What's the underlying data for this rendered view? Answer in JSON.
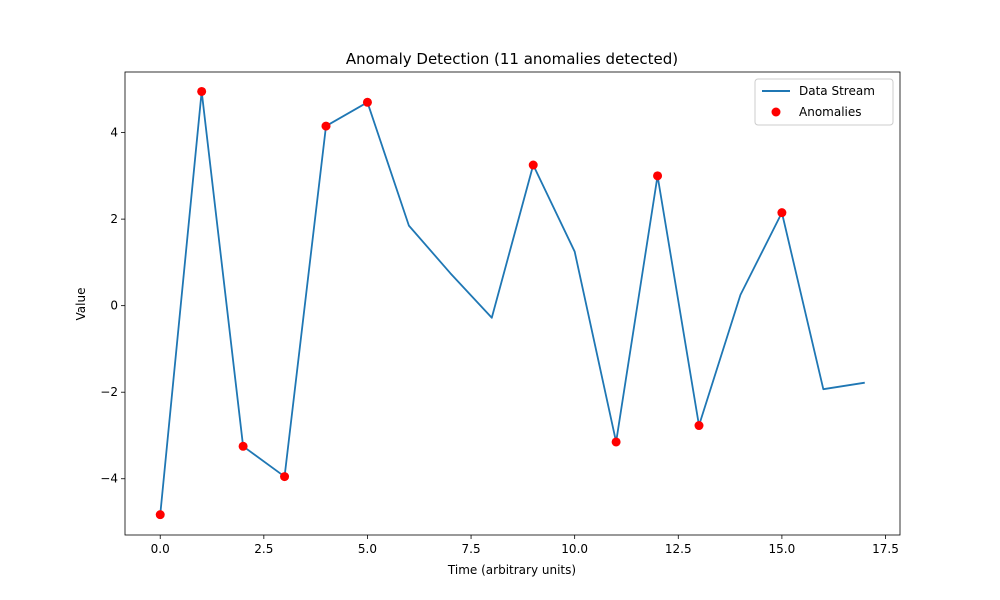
{
  "chart_data": {
    "type": "line",
    "title": "Anomaly Detection (11 anomalies detected)",
    "xlabel": "Time (arbitrary units)",
    "ylabel": "Value",
    "xlim": [
      -0.85,
      17.85
    ],
    "ylim": [
      -5.3,
      5.4
    ],
    "x_ticks": [
      0.0,
      2.5,
      5.0,
      7.5,
      10.0,
      12.5,
      15.0,
      17.5
    ],
    "x_tick_labels": [
      "0.0",
      "2.5",
      "5.0",
      "7.5",
      "10.0",
      "12.5",
      "15.0",
      "17.5"
    ],
    "y_ticks": [
      -4,
      -2,
      0,
      2,
      4
    ],
    "y_tick_labels": [
      "−4",
      "−2",
      "0",
      "2",
      "4"
    ],
    "grid": false,
    "legend_position": "top-right",
    "series": [
      {
        "name": "Data Stream",
        "kind": "line",
        "color": "#1f77b4",
        "x": [
          0,
          1,
          2,
          3,
          4,
          5,
          6,
          7,
          8,
          9,
          10,
          11,
          12,
          13,
          14,
          15,
          16,
          17
        ],
        "y": [
          -4.83,
          4.95,
          -3.25,
          -3.95,
          4.15,
          4.7,
          1.85,
          0.75,
          -0.28,
          3.25,
          1.25,
          -3.15,
          3.0,
          -2.77,
          0.25,
          2.15,
          -1.93,
          -1.78
        ]
      },
      {
        "name": "Anomalies",
        "kind": "scatter",
        "color": "#ff0000",
        "x": [
          0,
          1,
          2,
          3,
          4,
          5,
          9,
          11,
          12,
          13,
          15
        ],
        "y": [
          -4.83,
          4.95,
          -3.25,
          -3.95,
          4.15,
          4.7,
          3.25,
          -3.15,
          3.0,
          -2.77,
          2.15
        ]
      }
    ]
  }
}
